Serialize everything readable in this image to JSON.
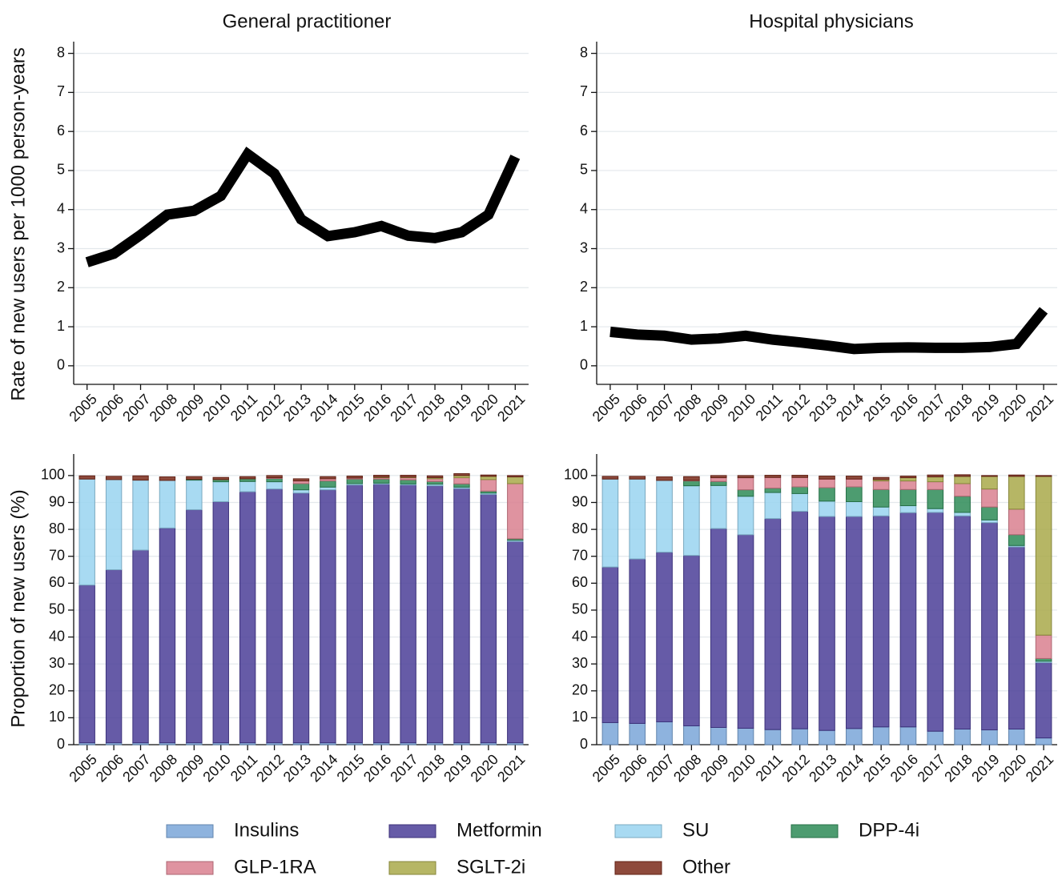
{
  "chart_data": [
    {
      "type": "line",
      "title": "General practitioner",
      "y_label": "Rate of new users per 1000 person-years",
      "categories": [
        "2005",
        "2006",
        "2007",
        "2008",
        "2009",
        "2010",
        "2011",
        "2012",
        "2013",
        "2014",
        "2015",
        "2016",
        "2017",
        "2018",
        "2019",
        "2020",
        "2021"
      ],
      "values": [
        2.65,
        2.87,
        3.35,
        3.87,
        3.97,
        4.35,
        5.42,
        4.92,
        3.75,
        3.32,
        3.42,
        3.58,
        3.33,
        3.27,
        3.42,
        3.87,
        5.35
      ],
      "color": "#000000",
      "ylim": [
        -0.27,
        8.3
      ],
      "yticks": [
        0,
        1,
        2,
        3,
        4,
        5,
        6,
        7,
        8
      ],
      "grid": true
    },
    {
      "type": "line",
      "title": "Hospital physicians",
      "categories": [
        "2005",
        "2006",
        "2007",
        "2008",
        "2009",
        "2010",
        "2011",
        "2012",
        "2013",
        "2014",
        "2015",
        "2016",
        "2017",
        "2018",
        "2019",
        "2020",
        "2021"
      ],
      "values": [
        0.87,
        0.8,
        0.77,
        0.67,
        0.7,
        0.77,
        0.67,
        0.6,
        0.52,
        0.43,
        0.46,
        0.47,
        0.46,
        0.46,
        0.48,
        0.56,
        1.42
      ],
      "color": "#000000",
      "ylim": [
        -0.27,
        8.3
      ],
      "yticks": [
        0,
        1,
        2,
        3,
        4,
        5,
        6,
        7,
        8
      ],
      "grid": true
    },
    {
      "type": "stacked_bar",
      "y_label": "Proportion of new users (%)",
      "categories": [
        "2005",
        "2006",
        "2007",
        "2008",
        "2009",
        "2010",
        "2011",
        "2012",
        "2013",
        "2014",
        "2015",
        "2016",
        "2017",
        "2018",
        "2019",
        "2020",
        "2021"
      ],
      "ylim": [
        0,
        108
      ],
      "yticks": [
        0,
        10,
        20,
        30,
        40,
        50,
        60,
        70,
        80,
        90,
        100
      ],
      "grid": true,
      "series": [
        {
          "name": "Insulins",
          "color": "#7aa6d8",
          "values": [
            0.7,
            0.7,
            0.7,
            0.7,
            0.7,
            0.7,
            0.7,
            0.7,
            0.7,
            0.7,
            0.7,
            0.7,
            0.7,
            0.7,
            0.7,
            0.7,
            0.7
          ]
        },
        {
          "name": "Metformin",
          "color": "#4b3e98",
          "values": [
            58.6,
            64.3,
            71.6,
            79.8,
            86.6,
            89.6,
            93.3,
            94.3,
            92.8,
            94.0,
            95.8,
            96.1,
            95.8,
            95.5,
            94.5,
            92.3,
            74.8
          ]
        },
        {
          "name": "SU",
          "color": "#99d3f0",
          "values": [
            39.4,
            33.5,
            26.0,
            17.7,
            11.0,
            7.4,
            3.8,
            2.7,
            1.2,
            1.0,
            0.5,
            0.4,
            0.4,
            0.6,
            0.5,
            0.5,
            0.5
          ]
        },
        {
          "name": "DPP-4i",
          "color": "#2e8b57",
          "values": [
            0,
            0,
            0,
            0,
            0.3,
            0.8,
            1.0,
            1.2,
            2.3,
            2.3,
            1.7,
            1.5,
            1.5,
            1.0,
            1.2,
            0.7,
            0.5
          ]
        },
        {
          "name": "GLP-1RA",
          "color": "#d9808f",
          "values": [
            0,
            0,
            0,
            0,
            0,
            0,
            0,
            0.3,
            1.0,
            0.8,
            0.4,
            0.5,
            0.8,
            1.0,
            2.3,
            4.3,
            20.5
          ]
        },
        {
          "name": "SGLT-2i",
          "color": "#a9a94a",
          "values": [
            0,
            0,
            0,
            0,
            0,
            0,
            0,
            0,
            0,
            0,
            0,
            0.2,
            0.2,
            0.4,
            0.8,
            1.2,
            2.5
          ]
        },
        {
          "name": "Other",
          "color": "#7a2a1a",
          "values": [
            1.2,
            1.2,
            1.6,
            1.3,
            1.0,
            0.8,
            0.8,
            0.8,
            0.8,
            0.8,
            0.7,
            0.7,
            0.7,
            0.7,
            0.7,
            0.5,
            0.5
          ]
        }
      ]
    },
    {
      "type": "stacked_bar",
      "categories": [
        "2005",
        "2006",
        "2007",
        "2008",
        "2009",
        "2010",
        "2011",
        "2012",
        "2013",
        "2014",
        "2015",
        "2016",
        "2017",
        "2018",
        "2019",
        "2020",
        "2021"
      ],
      "ylim": [
        0,
        108
      ],
      "yticks": [
        0,
        10,
        20,
        30,
        40,
        50,
        60,
        70,
        80,
        90,
        100
      ],
      "grid": true,
      "series": [
        {
          "name": "Insulins",
          "color": "#7aa6d8",
          "values": [
            8.2,
            7.9,
            8.5,
            7.0,
            6.4,
            6.1,
            5.6,
            5.9,
            5.3,
            6.0,
            6.6,
            6.6,
            5.0,
            5.8,
            5.5,
            5.8,
            2.5
          ]
        },
        {
          "name": "Metformin",
          "color": "#4b3e98",
          "values": [
            57.8,
            61.1,
            63.0,
            63.3,
            73.9,
            71.9,
            78.4,
            80.8,
            79.5,
            78.8,
            78.4,
            79.6,
            81.3,
            79.2,
            77.0,
            67.7,
            28.0
          ]
        },
        {
          "name": "SU",
          "color": "#99d3f0",
          "values": [
            32.7,
            29.7,
            26.7,
            25.9,
            16.0,
            14.3,
            9.7,
            6.6,
            5.7,
            5.5,
            3.3,
            2.6,
            1.4,
            1.3,
            1.0,
            0.5,
            0.5
          ]
        },
        {
          "name": "DPP-4i",
          "color": "#2e8b57",
          "values": [
            0,
            0,
            0,
            1.8,
            1.5,
            2.4,
            1.6,
            2.5,
            5.0,
            5.5,
            6.5,
            6.0,
            7.1,
            6.0,
            4.8,
            4.0,
            1.0
          ]
        },
        {
          "name": "GLP-1RA",
          "color": "#d9808f",
          "values": [
            0,
            0,
            0,
            0.2,
            1.4,
            4.5,
            4.0,
            3.5,
            3.2,
            2.9,
            3.2,
            3.2,
            2.9,
            4.7,
            6.7,
            9.5,
            8.7
          ]
        },
        {
          "name": "SGLT-2i",
          "color": "#a9a94a",
          "values": [
            0,
            0,
            0,
            0,
            0,
            0,
            0,
            0,
            0,
            0,
            0.5,
            1.2,
            1.8,
            2.7,
            4.7,
            12.2,
            59.0
          ]
        },
        {
          "name": "Other",
          "color": "#7a2a1a",
          "values": [
            1.0,
            1.0,
            1.3,
            1.4,
            0.8,
            0.8,
            0.8,
            0.8,
            1.1,
            1.1,
            0.8,
            0.6,
            0.7,
            0.6,
            0.3,
            0.5,
            0.3
          ]
        }
      ]
    }
  ]
}
